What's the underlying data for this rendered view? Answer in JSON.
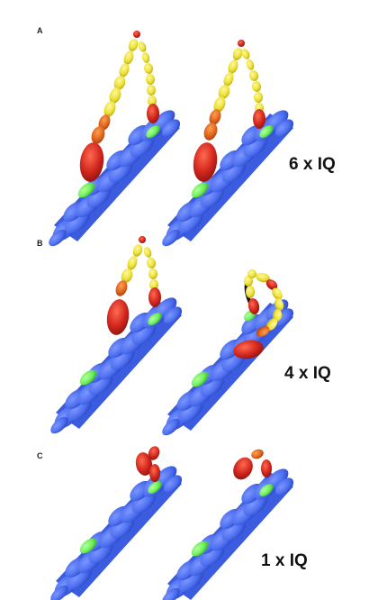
{
  "panels": [
    {
      "letter": "A",
      "label": "6 x IQ",
      "iq_count": 6
    },
    {
      "letter": "B",
      "label": "4 x IQ",
      "iq_count": 4
    },
    {
      "letter": "C",
      "label": "1 x IQ",
      "iq_count": 1
    }
  ],
  "colors": {
    "actin_filament": "#4d6fef",
    "actin_shadow": "#2f4fd0",
    "binding_site": "#6cf05a",
    "motor_head": "#d2261d",
    "lever_arm_light_chain": "#ece237",
    "lever_arm_orange": "#e0651e"
  }
}
